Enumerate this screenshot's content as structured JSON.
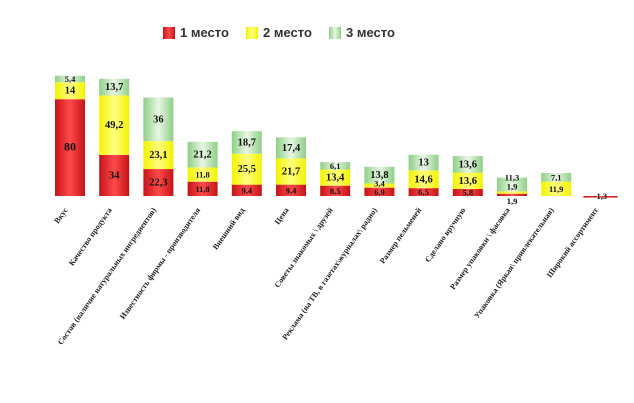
{
  "chart_data": {
    "type": "bar",
    "stacked": true,
    "legend_position": "top",
    "grid": false,
    "categories": [
      "Вкус",
      "Качество продукта",
      "Состав (наличие натуральных ингредиентов)",
      "Известность фирмы - производителя",
      "Внешний вид",
      "Цена",
      "Советы знакомых \\ друзей",
      "Реклама (на ТВ, в газетах\\журналах\\ радио)",
      "Размер пельменей",
      "Сделано вручную",
      "Размер упаковки \\ фасовка",
      "Упаковка (Яркая\\ привлекательная)",
      "Широкий ассортимент"
    ],
    "series": [
      {
        "name": "1 место",
        "color": "#e8262a",
        "values": [
          80,
          34,
          22.3,
          11.8,
          9.4,
          9.4,
          8.5,
          6.9,
          6.5,
          5.8,
          1.9,
          0,
          1.3
        ],
        "labels": [
          "80",
          "34",
          "22,3",
          "11,8",
          "9,4",
          "9,4",
          "8,5",
          "6,9",
          "6,5",
          "5,8",
          "1,9",
          "",
          "1,3"
        ]
      },
      {
        "name": "2 место",
        "color": "#ffff33",
        "values": [
          14,
          49.2,
          23.1,
          11.8,
          25.5,
          21.7,
          13.4,
          3.4,
          14.6,
          13.6,
          1.9,
          11.9,
          0
        ],
        "labels": [
          "14",
          "49,2",
          "23,1",
          "11,8",
          "25,5",
          "21,7",
          "13,4",
          "3,4",
          "14,6",
          "13,6",
          "1,9",
          "11,9",
          ""
        ]
      },
      {
        "name": "3 место",
        "color": "#b5ddb0",
        "values": [
          5.4,
          13.7,
          36,
          21.2,
          18.7,
          17.4,
          6.1,
          13.8,
          13,
          13.6,
          11.3,
          7.1,
          0
        ],
        "labels": [
          "5,4",
          "13,7",
          "36",
          "21,2",
          "18,7",
          "17,4",
          "6,1",
          "13,8",
          "13",
          "13,6",
          "11,3",
          "7,1",
          ""
        ]
      }
    ]
  }
}
